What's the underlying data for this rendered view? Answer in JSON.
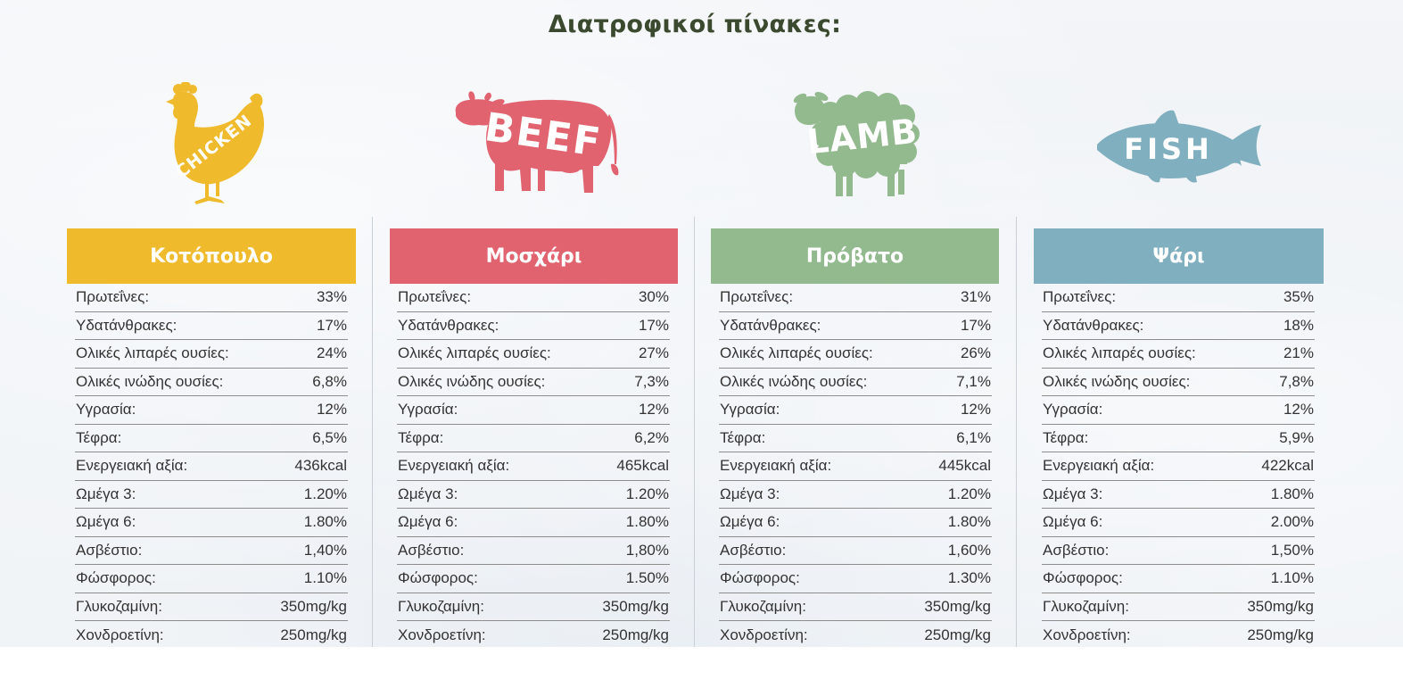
{
  "title": "Διατροφικοί πίνακες:",
  "labels": [
    "Πρωτεΐνες:",
    "Υδατάνθρακες:",
    "Ολικές λιπαρές ουσίες:",
    "Ολικές ινώδης ουσίες:",
    "Υγρασία:",
    "Τέφρα:",
    "Ενεργειακή αξία:",
    "Ωμέγα 3:",
    "Ωμέγα 6:",
    "Ασβέστιο:",
    "Φώσφορος:",
    "Γλυκοζαμίνη:",
    "Χονδροετίνη:"
  ],
  "products": [
    {
      "name": "Κοτόπουλο",
      "illustration_text": "CHICKEN",
      "color": "#efba2c",
      "icon": "chicken-icon",
      "values": [
        "33%",
        "17%",
        "24%",
        "6,8%",
        "12%",
        "6,5%",
        "436kcal",
        "1.20%",
        "1.80%",
        "1,40%",
        "1.10%",
        "350mg/kg",
        "250mg/kg"
      ]
    },
    {
      "name": "Μοσχάρι",
      "illustration_text": "BEEF",
      "color": "#e0636f",
      "icon": "cow-icon",
      "values": [
        "30%",
        "17%",
        "27%",
        "7,3%",
        "12%",
        "6,2%",
        "465kcal",
        "1.20%",
        "1.80%",
        "1,80%",
        "1.50%",
        "350mg/kg",
        "250mg/kg"
      ]
    },
    {
      "name": "Πρόβατο",
      "illustration_text": "LAMB",
      "color": "#93ba8f",
      "icon": "sheep-icon",
      "values": [
        "31%",
        "17%",
        "26%",
        "7,1%",
        "12%",
        "6,1%",
        "445kcal",
        "1.20%",
        "1.80%",
        "1,60%",
        "1.30%",
        "350mg/kg",
        "250mg/kg"
      ]
    },
    {
      "name": "Ψάρι",
      "illustration_text": "FISH",
      "color": "#80afbf",
      "icon": "fish-icon",
      "values": [
        "35%",
        "18%",
        "21%",
        "7,8%",
        "12%",
        "5,9%",
        "422kcal",
        "1.80%",
        "2.00%",
        "1,50%",
        "1.10%",
        "350mg/kg",
        "250mg/kg"
      ]
    }
  ]
}
